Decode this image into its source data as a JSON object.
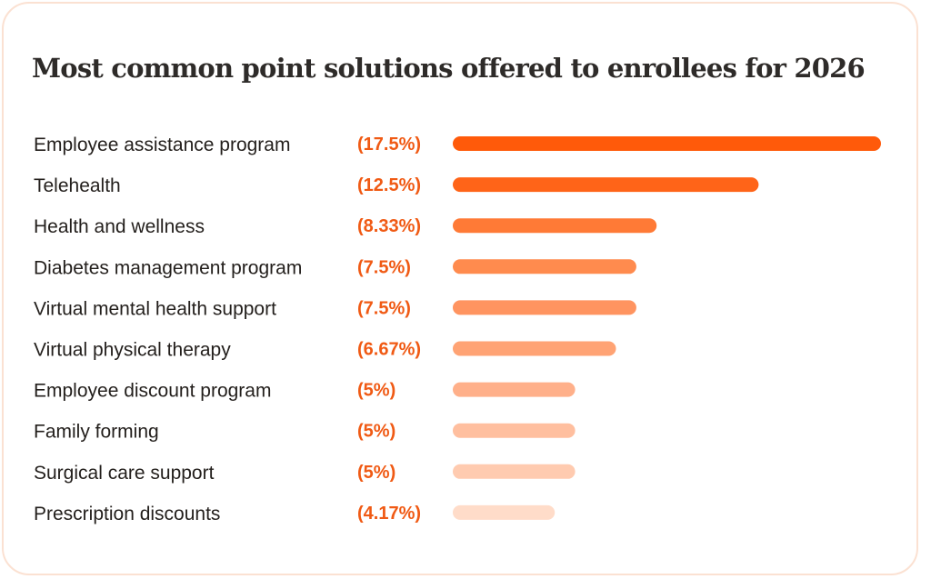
{
  "chart_data": {
    "type": "bar",
    "orientation": "horizontal",
    "title": "Most common point solutions offered to enrollees for 2026",
    "categories": [
      "Employee assistance program",
      "Telehealth",
      "Health and wellness",
      "Diabetes management program",
      "Virtual mental health support",
      "Virtual physical therapy",
      "Employee discount program",
      "Family forming",
      "Surgical care support",
      "Prescription discounts"
    ],
    "values": [
      17.5,
      12.5,
      8.33,
      7.5,
      7.5,
      6.67,
      5,
      5,
      5,
      4.17
    ],
    "value_labels": [
      "(17.5%)",
      "(12.5%)",
      "(8.33%)",
      "(7.5%)",
      "(7.5%)",
      "(6.67%)",
      "(5%)",
      "(5%)",
      "(5%)",
      "(4.17%)"
    ],
    "bar_colors": [
      "#ff5a0a",
      "#ff6418",
      "#ff7a36",
      "#ff8b4e",
      "#ff9460",
      "#ffa374",
      "#ffb08a",
      "#ffbf9f",
      "#ffcbb0",
      "#ffdcc9"
    ],
    "label_color": "#f05a14",
    "grid": false,
    "legend": "none"
  }
}
